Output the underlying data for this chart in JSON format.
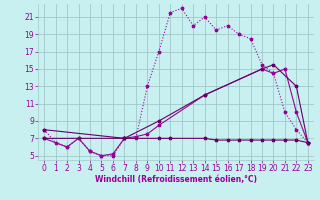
{
  "background_color": "#c8f0f0",
  "grid_color": "#a0c8c8",
  "line_color1": "#990099",
  "line_color2": "#660066",
  "xlabel": "Windchill (Refroidissement éolien,°C)",
  "xlim": [
    -0.5,
    23.5
  ],
  "ylim": [
    4.5,
    22.5
  ],
  "xticks": [
    0,
    1,
    2,
    3,
    4,
    5,
    6,
    7,
    8,
    9,
    10,
    11,
    12,
    13,
    14,
    15,
    16,
    17,
    18,
    19,
    20,
    21,
    22,
    23
  ],
  "yticks": [
    5,
    7,
    9,
    11,
    13,
    15,
    17,
    19,
    21
  ],
  "series1_x": [
    0,
    1,
    2,
    3,
    4,
    5,
    6,
    7,
    8,
    9,
    10,
    11,
    12,
    13,
    14,
    15,
    16,
    17,
    18,
    19,
    20,
    21,
    22,
    23
  ],
  "series1_y": [
    8.0,
    6.5,
    6.0,
    7.0,
    5.5,
    5.0,
    5.0,
    7.0,
    7.0,
    13.0,
    17.0,
    21.5,
    22.0,
    20.0,
    21.0,
    19.5,
    20.0,
    19.0,
    18.5,
    15.5,
    14.5,
    10.0,
    8.0,
    6.5
  ],
  "series2_x": [
    0,
    2,
    3,
    4,
    5,
    6,
    7,
    8,
    9,
    10,
    14,
    19,
    20,
    21,
    22,
    23
  ],
  "series2_y": [
    7.0,
    6.0,
    7.0,
    5.5,
    5.0,
    5.2,
    7.0,
    7.2,
    7.5,
    8.5,
    12.0,
    15.0,
    14.5,
    15.0,
    10.0,
    6.5
  ],
  "series3_x": [
    0,
    7,
    10,
    14,
    19,
    20,
    22,
    23
  ],
  "series3_y": [
    8.0,
    7.0,
    9.0,
    12.0,
    15.0,
    15.5,
    13.0,
    6.5
  ],
  "series4_x": [
    0,
    7,
    10,
    11,
    14,
    15,
    16,
    17,
    18,
    19,
    20,
    21,
    22,
    23
  ],
  "series4_y": [
    7.0,
    7.0,
    7.0,
    7.0,
    7.0,
    6.8,
    6.8,
    6.8,
    6.8,
    6.8,
    6.8,
    6.8,
    6.8,
    6.5
  ],
  "font_size": 5.5,
  "marker": "*",
  "marker_size": 2.5,
  "linewidth": 0.8
}
